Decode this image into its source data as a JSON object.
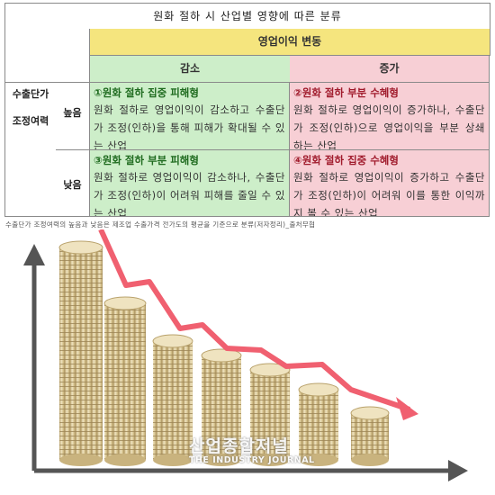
{
  "table": {
    "title": "원화 절하 시 산업별 영향에 따른 분류",
    "col_group": "영업이익 변동",
    "col_decrease": "감소",
    "col_increase": "증가",
    "row_group_line1": "수출단가",
    "row_group_line2": "조정여력",
    "row_high": "높음",
    "row_low": "낮음",
    "cells": {
      "high_dec": {
        "title": "①원화 절하 집중 피해형",
        "body": "원화 절하로 영업이익이 감소하고 수출단가 조정(인하)을 통해 피해가 확대될 수 있는 산업"
      },
      "high_inc": {
        "title": "②원화 절하 부분 수혜형",
        "body": "원화 절하로 영업이익이 증가하나, 수출단가 조정(인하)으로 영업이익을 부분 상쇄하는 산업"
      },
      "low_dec": {
        "title": "③원화 절하 부분 피해형",
        "body": "원화 절하로 영업이익이 감소하나, 수출단가 조정(인하)이 어려워 피해를 줄일 수 있는 산업"
      },
      "low_inc": {
        "title": "④원화 절하 집중 수혜형",
        "body": "원화 절하로 영업이익이 증가하고 수출단가 조정(인하)이 어려워 이를 통한 이익까지 볼 수 있는 산업"
      }
    }
  },
  "note": "수출단가 조정여력의 높음과 낮음은 제조업 수출가격 전가도의 평균을 기준으로 분류(저자정리)_출처무협",
  "watermark": {
    "korean": "산업종합저널",
    "english": "THE INDUSTRY JOURNAL"
  },
  "colors": {
    "yellow_header": "#f5e57e",
    "green": "#cdeec9",
    "pink": "#f7cfd5",
    "trend_line": "#f06070",
    "coin": "#d9c89a"
  },
  "illustration": {
    "description_icon": "coin-stacks-declining-chart-icon"
  }
}
